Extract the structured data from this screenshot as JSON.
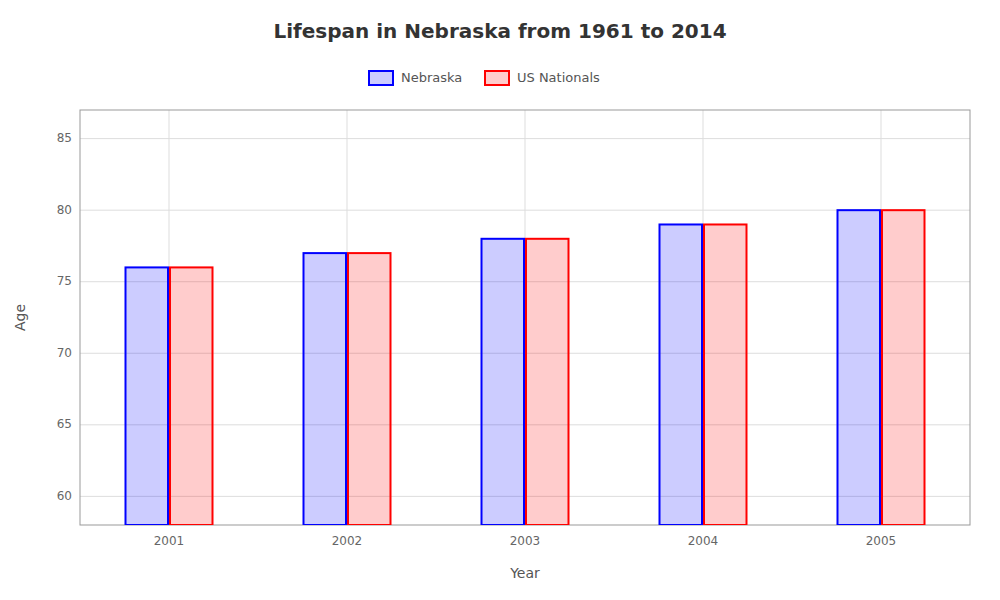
{
  "chart_data": {
    "type": "bar",
    "title": "Lifespan in Nebraska from 1961 to 2014",
    "xlabel": "Year",
    "ylabel": "Age",
    "categories": [
      "2001",
      "2002",
      "2003",
      "2004",
      "2005"
    ],
    "series": [
      {
        "name": "Nebraska",
        "color": "#0000ff",
        "values": [
          76,
          77,
          78,
          79,
          80
        ]
      },
      {
        "name": "US Nationals",
        "color": "#ff0000",
        "values": [
          76,
          77,
          78,
          79,
          80
        ]
      }
    ],
    "ylim": [
      58,
      87
    ],
    "yticks": [
      60,
      65,
      70,
      75,
      80,
      85
    ],
    "grid": true,
    "legend": "top"
  }
}
